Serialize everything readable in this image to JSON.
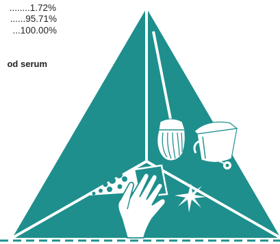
{
  "composition_lines": [
    "........1.72%",
    "......95.71%",
    "...100.00%"
  ],
  "caption": "od serum",
  "colors": {
    "teal": "#1e8f8d",
    "dash": "#1e8f8d",
    "text": "#231f20",
    "white": "#ffffff"
  },
  "icons": [
    "cleaning-triangle-emblem",
    "mop-icon",
    "bucket-icon",
    "hand-wiping-icon",
    "sparkle-icon",
    "suds-icon"
  ]
}
